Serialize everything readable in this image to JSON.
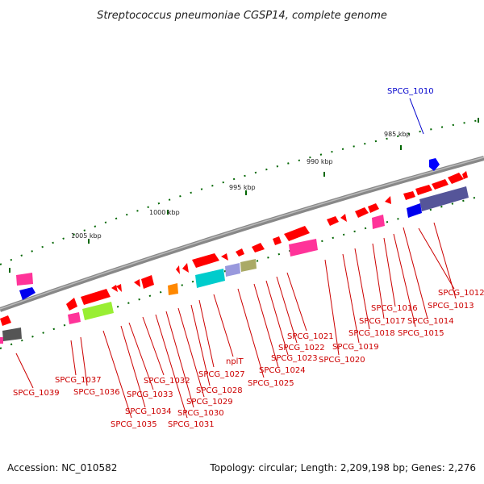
{
  "title": "Streptococcus pneumoniae CGSP14, complete genome",
  "accession": "Accession: NC_010582",
  "summary": "Topology: circular; Length: 2,209,198 bp; Genes: 2,276",
  "scale_labels": [
    "985 kbp",
    "990 kbp",
    "995 kbp",
    "1000 kbp",
    "1005 kbp"
  ],
  "colors": {
    "backbone": "#888888",
    "gene_red": "#ff0000",
    "label_red": "#cc0000",
    "label_blue": "#0000cc",
    "tick_green": "#006600",
    "pink": "#ff3399",
    "blue": "#0000ff",
    "lime": "#99ee33",
    "cyan": "#00cccc",
    "lavender": "#9999dd",
    "olive": "#aaaa66",
    "orange": "#ff8800",
    "navy": "#333399",
    "slate": "#555599",
    "gray": "#555555"
  },
  "gene_labels": [
    "SPCG_1010",
    "SPCG_1012",
    "SPCG_1013",
    "SPCG_1014",
    "SPCG_1015",
    "SPCG_1016",
    "SPCG_1017",
    "SPCG_1018",
    "SPCG_1019",
    "SPCG_1020",
    "SPCG_1021",
    "SPCG_1022",
    "SPCG_1023",
    "SPCG_1024",
    "SPCG_1025",
    "nplT",
    "SPCG_1027",
    "SPCG_1028",
    "SPCG_1029",
    "SPCG_1030",
    "SPCG_1031",
    "SPCG_1032",
    "SPCG_1033",
    "SPCG_1034",
    "SPCG_1035",
    "SPCG_1036",
    "SPCG_1037",
    "SPCG_1039"
  ]
}
